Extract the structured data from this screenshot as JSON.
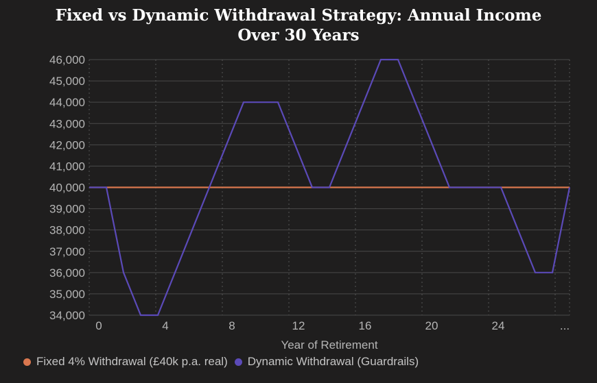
{
  "chart_data": {
    "type": "line",
    "title_lines": [
      "Fixed vs Dynamic Withdrawal Strategy: Annual Income",
      "Over 30 Years"
    ],
    "xlabel": "Year of Retirement",
    "ylabel": "",
    "x_tick_labels": [
      "0",
      "4",
      "8",
      "12",
      "16",
      "20",
      "24",
      "..."
    ],
    "y_tick_labels": [
      "34,000",
      "35,000",
      "36,000",
      "37,000",
      "38,000",
      "39,000",
      "40,000",
      "41,000",
      "42,000",
      "43,000",
      "44,000",
      "45,000",
      "46,000"
    ],
    "x": [
      0,
      1,
      2,
      3,
      4,
      5,
      6,
      7,
      8,
      9,
      10,
      11,
      12,
      13,
      14,
      15,
      16,
      17,
      18,
      19,
      20,
      21,
      22,
      23,
      24,
      25,
      26,
      27,
      28
    ],
    "ylim": [
      34000,
      46000
    ],
    "grid": true,
    "legend_position": "bottom",
    "series": [
      {
        "name": "Fixed 4% Withdrawal (£40k p.a. real)",
        "color": "#d9774f",
        "values": [
          40000,
          40000,
          40000,
          40000,
          40000,
          40000,
          40000,
          40000,
          40000,
          40000,
          40000,
          40000,
          40000,
          40000,
          40000,
          40000,
          40000,
          40000,
          40000,
          40000,
          40000,
          40000,
          40000,
          40000,
          40000,
          40000,
          40000,
          40000,
          40000
        ]
      },
      {
        "name": "Dynamic Withdrawal (Guardrails)",
        "color": "#5b4ab8",
        "values": [
          40000,
          40000,
          36000,
          34000,
          34000,
          36000,
          38000,
          40000,
          42000,
          44000,
          44000,
          44000,
          42000,
          40000,
          40000,
          42000,
          44000,
          46000,
          46000,
          44000,
          42000,
          40000,
          40000,
          40000,
          40000,
          38000,
          36000,
          36000,
          40000
        ]
      }
    ]
  }
}
